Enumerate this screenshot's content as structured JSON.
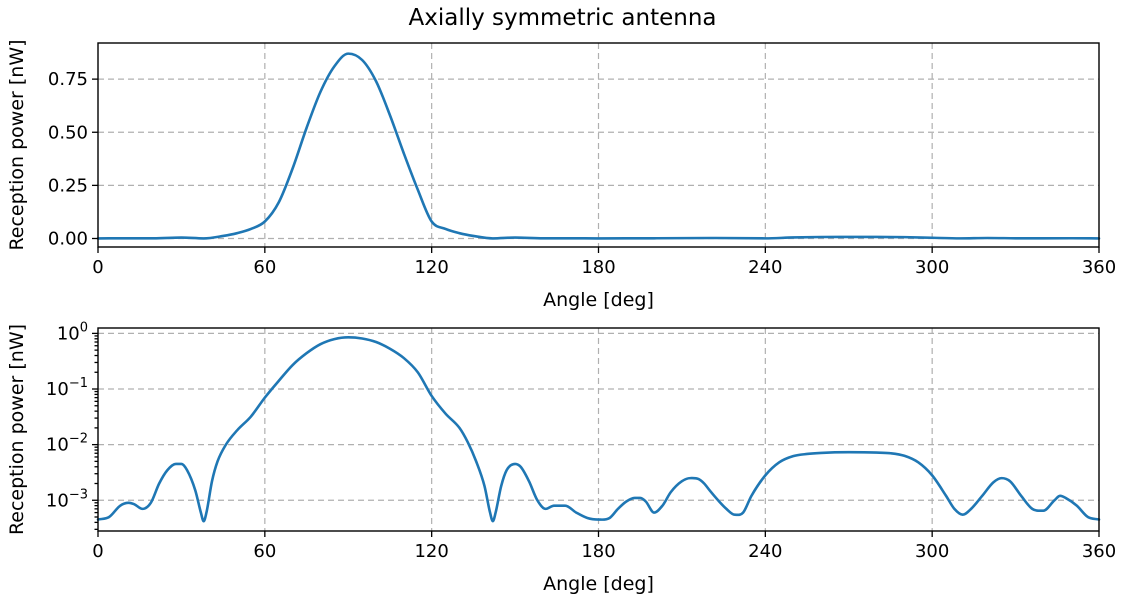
{
  "title": "Axially symmetric antenna",
  "colors": {
    "series": "#1f77b4",
    "grid": "#b0b0b0",
    "frame": "#000000"
  },
  "chart_data": [
    {
      "type": "line",
      "xlabel": "Angle [deg]",
      "ylabel": "Reception power [nW]",
      "xlim": [
        0,
        360
      ],
      "ylim": [
        -0.04,
        0.92
      ],
      "yscale": "linear",
      "grid": true,
      "x_ticks": [
        0,
        60,
        120,
        180,
        240,
        300,
        360
      ],
      "x_tick_labels": [
        "0",
        "60",
        "120",
        "180",
        "240",
        "300",
        "360"
      ],
      "y_ticks": [
        0.0,
        0.25,
        0.5,
        0.75
      ],
      "y_tick_labels": [
        "0.00",
        "0.25",
        "0.50",
        "0.75"
      ],
      "series": [
        {
          "x": [
            0,
            10,
            20,
            30,
            38,
            45,
            50,
            55,
            60,
            65,
            70,
            75,
            80,
            85,
            90,
            95,
            100,
            105,
            110,
            115,
            120,
            125,
            130,
            135,
            142,
            150,
            160,
            170,
            180,
            200,
            220,
            240,
            250,
            260,
            270,
            280,
            290,
            300,
            310,
            320,
            330,
            340,
            350,
            360
          ],
          "y": [
            0.0005,
            0.0009,
            0.0008,
            0.0045,
            0.0005,
            0.012,
            0.025,
            0.045,
            0.08,
            0.17,
            0.33,
            0.52,
            0.69,
            0.81,
            0.87,
            0.84,
            0.74,
            0.58,
            0.4,
            0.23,
            0.08,
            0.045,
            0.025,
            0.012,
            0.0005,
            0.0045,
            0.0008,
            0.0009,
            0.0005,
            0.0011,
            0.0024,
            0.0006,
            0.005,
            0.007,
            0.0074,
            0.0072,
            0.0065,
            0.0035,
            0.0006,
            0.0024,
            0.0011,
            0.0009,
            0.0012,
            0.0005
          ]
        }
      ]
    },
    {
      "type": "line",
      "xlabel": "Angle [deg]",
      "ylabel": "Reception power [nW]",
      "xlim": [
        0,
        360
      ],
      "ylim": [
        0.00028,
        1.25
      ],
      "yscale": "log",
      "grid": true,
      "x_ticks": [
        0,
        60,
        120,
        180,
        240,
        300,
        360
      ],
      "x_tick_labels": [
        "0",
        "60",
        "120",
        "180",
        "240",
        "300",
        "360"
      ],
      "y_ticks": [
        0.001,
        0.01,
        0.1,
        1
      ],
      "y_tick_labels": [
        [
          "10",
          "−3"
        ],
        [
          "10",
          "−2"
        ],
        [
          "10",
          "−1"
        ],
        [
          "10",
          "0"
        ]
      ],
      "series": [
        {
          "x": [
            0,
            4,
            8,
            11,
            13,
            16,
            19,
            22,
            25,
            28,
            30,
            32,
            35,
            37,
            38,
            39,
            41,
            43,
            46,
            50,
            55,
            60,
            65,
            70,
            75,
            80,
            85,
            90,
            95,
            100,
            105,
            110,
            115,
            120,
            125,
            130,
            133,
            136,
            139,
            141,
            142,
            143,
            145,
            147,
            150,
            152,
            155,
            158,
            161,
            164,
            168,
            172,
            176,
            180,
            184,
            187,
            190,
            193,
            195,
            197,
            200,
            203,
            206,
            210,
            213,
            216,
            218,
            220,
            223,
            226,
            229,
            232,
            235,
            240,
            245,
            250,
            255,
            260,
            270,
            280,
            285,
            290,
            295,
            300,
            305,
            308,
            311,
            314,
            318,
            322,
            325,
            328,
            332,
            336,
            340,
            344,
            346,
            348,
            352,
            356,
            360
          ],
          "y": [
            0.00045,
            0.0005,
            0.0008,
            0.0009,
            0.00085,
            0.0007,
            0.0009,
            0.002,
            0.0035,
            0.0045,
            0.0045,
            0.0035,
            0.0015,
            0.0006,
            0.00042,
            0.0006,
            0.0022,
            0.005,
            0.01,
            0.018,
            0.032,
            0.07,
            0.14,
            0.27,
            0.44,
            0.64,
            0.79,
            0.85,
            0.81,
            0.7,
            0.53,
            0.36,
            0.2,
            0.075,
            0.036,
            0.02,
            0.011,
            0.005,
            0.0018,
            0.0006,
            0.00042,
            0.0006,
            0.0018,
            0.0035,
            0.0045,
            0.004,
            0.0022,
            0.001,
            0.0007,
            0.0008,
            0.0008,
            0.0006,
            0.00048,
            0.00045,
            0.00048,
            0.0007,
            0.00095,
            0.0011,
            0.0011,
            0.00095,
            0.0006,
            0.0008,
            0.0014,
            0.0022,
            0.0025,
            0.0024,
            0.002,
            0.0015,
            0.001,
            0.0007,
            0.00055,
            0.0006,
            0.0012,
            0.0028,
            0.0048,
            0.0062,
            0.0068,
            0.0071,
            0.0073,
            0.0072,
            0.007,
            0.0063,
            0.0048,
            0.0028,
            0.0012,
            0.0007,
            0.00055,
            0.0007,
            0.0012,
            0.0021,
            0.0025,
            0.0022,
            0.0012,
            0.0007,
            0.00065,
            0.001,
            0.0012,
            0.0011,
            0.0008,
            0.0005,
            0.00045
          ]
        }
      ]
    }
  ]
}
